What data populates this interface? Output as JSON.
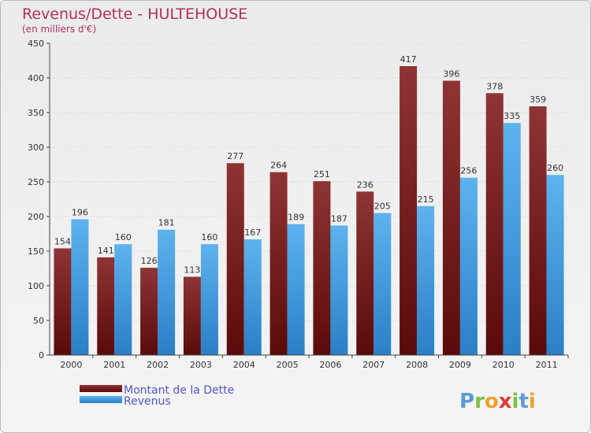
{
  "chart_data": {
    "type": "bar",
    "title": "Revenus/Dette - HULTEHOUSE",
    "subtitle": "(en milliers d'€)",
    "xlabel": "",
    "ylabel": "",
    "ylim": [
      0,
      450
    ],
    "yticks": [
      0,
      50,
      100,
      150,
      200,
      250,
      300,
      350,
      400,
      450
    ],
    "grid": true,
    "legend_position": "bottom-left",
    "categories": [
      "2000",
      "2001",
      "2002",
      "2003",
      "2004",
      "2005",
      "2006",
      "2007",
      "2008",
      "2009",
      "2010",
      "2011"
    ],
    "series": [
      {
        "name": "Montant de la Dette",
        "color": "#7b1f1f",
        "values": [
          154,
          141,
          126,
          113,
          277,
          264,
          251,
          236,
          417,
          396,
          378,
          359
        ]
      },
      {
        "name": "Revenus",
        "color": "#4aa3e6",
        "values": [
          196,
          160,
          181,
          160,
          167,
          189,
          187,
          205,
          215,
          256,
          335,
          260
        ]
      }
    ]
  },
  "branding": {
    "logo_letters": [
      "P",
      "r",
      "o",
      "x",
      "i",
      "t",
      "i"
    ],
    "logo_colors": [
      "#5b9bd5",
      "#7cc142",
      "#f0a030",
      "#e03c31",
      "#7cc142",
      "#5b9bd5",
      "#f0a030"
    ]
  }
}
